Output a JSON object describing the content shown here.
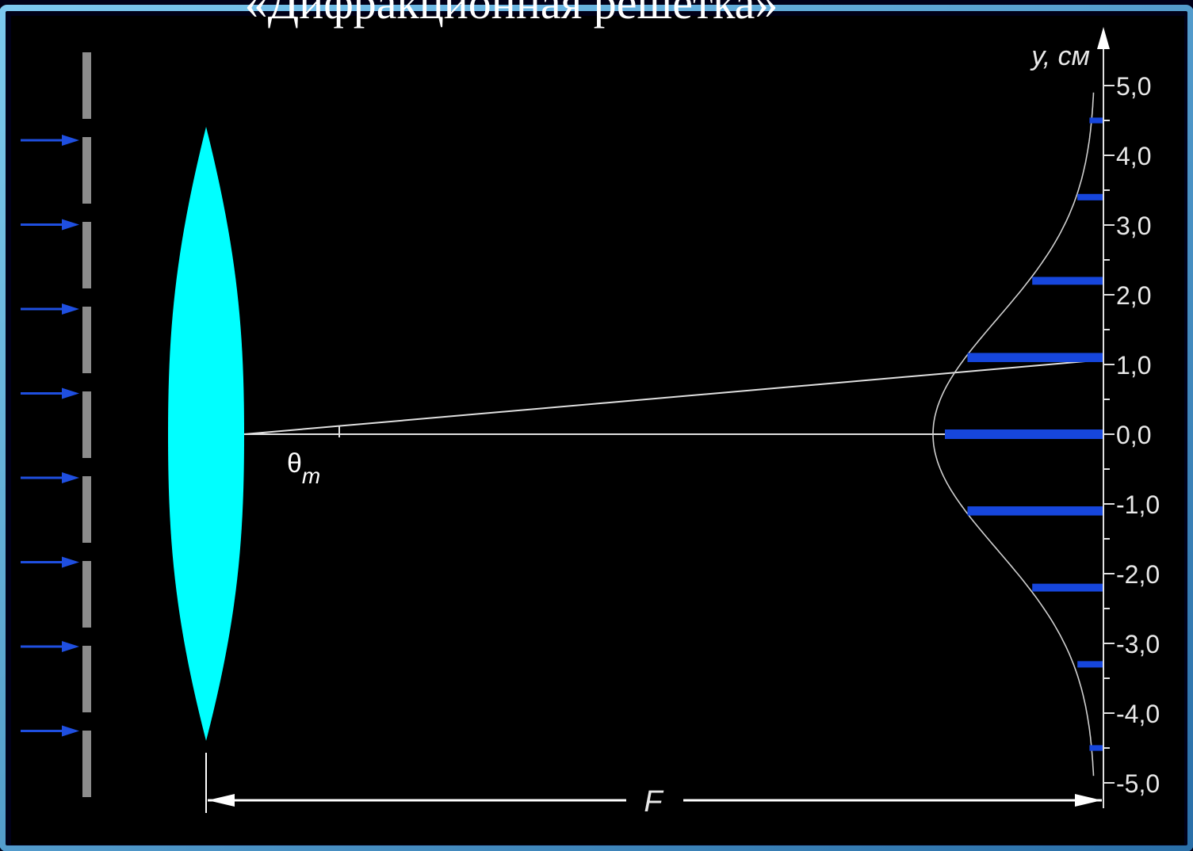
{
  "title": "«Дифракционная решетка»",
  "axis": {
    "label": "y, см",
    "ticks": [
      "5,0",
      "4,0",
      "3,0",
      "2,0",
      "1,0",
      "0,0",
      "-1,0",
      "-2,0",
      "-3,0",
      "-4,0",
      "-5,0"
    ],
    "tick_values": [
      5,
      4,
      3,
      2,
      1,
      0,
      -1,
      -2,
      -3,
      -4,
      -5
    ]
  },
  "angle_label": "θ",
  "angle_subscript": "m",
  "focal_label": "F",
  "colors": {
    "background": "#000000",
    "frame_glow": "#4aa8d8",
    "lens": "#00ffff",
    "grating": "#8c8c8c",
    "arrows": "#1f4fe0",
    "maxima": "#1646dc",
    "lines": "#ffffff"
  },
  "maxima": [
    {
      "y": 4.5,
      "intensity": 0.04
    },
    {
      "y": 3.4,
      "intensity": 0.12
    },
    {
      "y": 2.2,
      "intensity": 0.42
    },
    {
      "y": 1.1,
      "intensity": 0.85
    },
    {
      "y": 0.0,
      "intensity": 1.0
    },
    {
      "y": -1.1,
      "intensity": 0.85
    },
    {
      "y": -2.2,
      "intensity": 0.42
    },
    {
      "y": -3.3,
      "intensity": 0.12
    },
    {
      "y": -4.5,
      "intensity": 0.04
    }
  ]
}
